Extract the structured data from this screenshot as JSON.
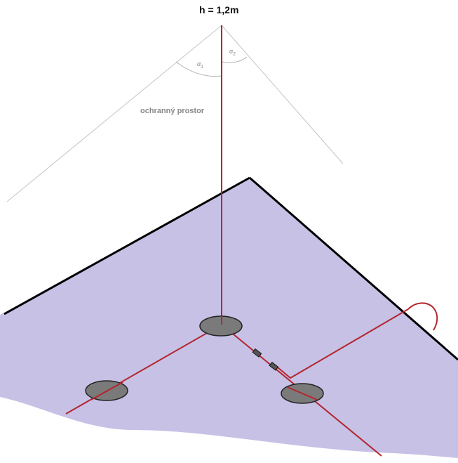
{
  "labels": {
    "height": "h = 1,2m",
    "protected_zone": "ochranný prostor",
    "angle1": "α",
    "angle1_sub": "1",
    "angle2": "α",
    "angle2_sub": "2"
  },
  "colors": {
    "roof_fill": "#c7c1e6",
    "roof_edge": "#000000",
    "conductor": "#b3262e",
    "support_fill": "#7a7a7a",
    "support_stroke": "#222222",
    "cone_line": "#c4c4c4",
    "label_gray": "#8a8a8a"
  }
}
